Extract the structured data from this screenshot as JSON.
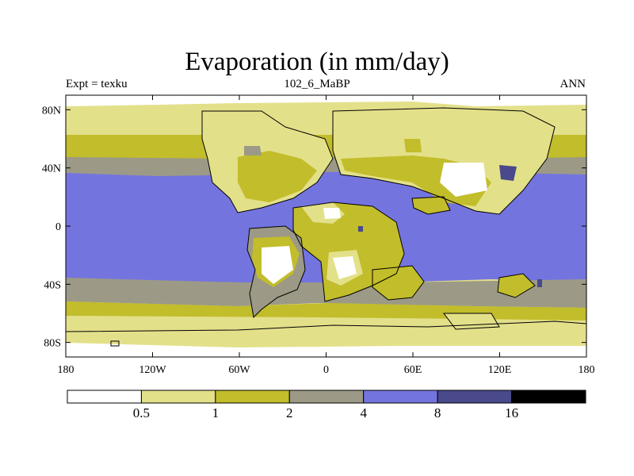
{
  "title": "Evaporation (in mm/day)",
  "subtitle_left": "Expt = texku",
  "subtitle_center": "102_6_MaBP",
  "subtitle_right": "ANN",
  "lon_ticks": [
    "180",
    "120W",
    "60W",
    "0",
    "60E",
    "120E",
    "180"
  ],
  "lat_ticks": [
    "80N",
    "40N",
    "0",
    "40S",
    "80S"
  ],
  "colorbar": {
    "colors": [
      "#ffffff",
      "#e3e08a",
      "#c2bd2a",
      "#9c9a86",
      "#7474df",
      "#49498c",
      "#000000"
    ],
    "labels": [
      "0.5",
      "1",
      "2",
      "4",
      "8",
      "16"
    ]
  },
  "colors": {
    "white": "#ffffff",
    "pale": "#e3e08a",
    "olive": "#c2bd2a",
    "gray": "#9c9a86",
    "blue": "#7474df",
    "navy": "#49498c"
  }
}
